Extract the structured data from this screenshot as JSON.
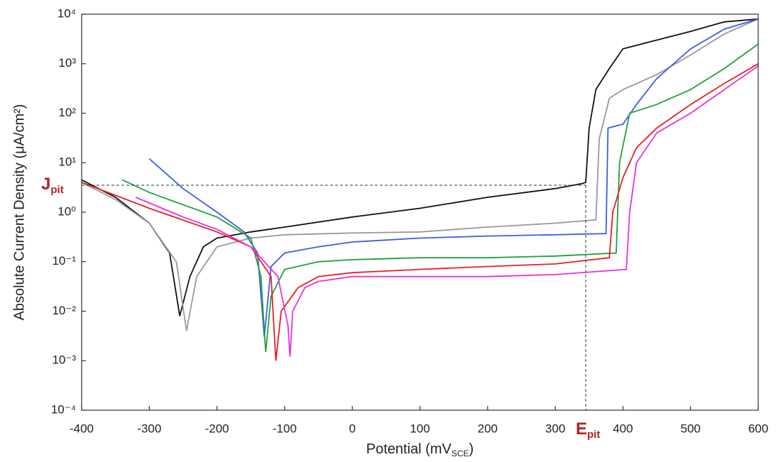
{
  "chart_data": {
    "type": "line",
    "y_label": "Absolute Current Density (μA/cm²)",
    "x_label": {
      "text": "Potential (mV",
      "sub": "SCE",
      "end": ")"
    },
    "xlim": [
      -400,
      600
    ],
    "xticks": [
      -400,
      -300,
      -200,
      -100,
      0,
      100,
      200,
      300,
      400,
      500,
      600
    ],
    "ylim": [
      0.0001,
      10000
    ],
    "yscale": "log",
    "yticks": [
      {
        "value": 0.0001,
        "label": "10⁻⁴"
      },
      {
        "value": 0.001,
        "label": "10⁻³"
      },
      {
        "value": 0.01,
        "label": "10⁻²"
      },
      {
        "value": 0.1,
        "label": "10⁻¹"
      },
      {
        "value": 1,
        "label": "10⁰"
      },
      {
        "value": 10,
        "label": "10¹"
      },
      {
        "value": 100,
        "label": "10²"
      },
      {
        "value": 1000,
        "label": "10³"
      },
      {
        "value": 10000,
        "label": "10⁴"
      }
    ],
    "pitting": {
      "potential": 345,
      "current_density": 3.5,
      "color": "#b22222",
      "j_label": {
        "text": "J",
        "sub": "pit"
      },
      "e_label": {
        "text": "E",
        "sub": "pit"
      }
    },
    "series": [
      {
        "color": "#111111",
        "x": [
          -400,
          -350,
          -300,
          -270,
          -255,
          -240,
          -220,
          -200,
          -150,
          -100,
          0,
          100,
          200,
          300,
          340,
          345,
          350,
          360,
          380,
          400,
          450,
          500,
          550,
          600
        ],
        "values": [
          4.5,
          2,
          0.6,
          0.15,
          0.008,
          0.05,
          0.2,
          0.3,
          0.4,
          0.5,
          0.8,
          1.2,
          2,
          3,
          3.8,
          4,
          50,
          300,
          800,
          2000,
          3000,
          4500,
          7000,
          8000
        ]
      },
      {
        "color": "#999999",
        "x": [
          -400,
          -350,
          -300,
          -260,
          -245,
          -230,
          -200,
          -150,
          -100,
          0,
          100,
          200,
          300,
          360,
          365,
          380,
          400,
          450,
          500,
          550,
          600
        ],
        "values": [
          4,
          1.8,
          0.6,
          0.1,
          0.004,
          0.05,
          0.2,
          0.3,
          0.35,
          0.38,
          0.4,
          0.5,
          0.6,
          0.7,
          30,
          200,
          300,
          600,
          1500,
          4000,
          8000
        ]
      },
      {
        "color": "#3a5ee8",
        "x": [
          -300,
          -250,
          -200,
          -160,
          -140,
          -130,
          -120,
          -100,
          -50,
          0,
          100,
          200,
          300,
          375,
          378,
          400,
          420,
          450,
          500,
          550,
          600
        ],
        "values": [
          12,
          3,
          1,
          0.4,
          0.15,
          0.003,
          0.08,
          0.15,
          0.2,
          0.25,
          0.3,
          0.33,
          0.35,
          0.37,
          50,
          60,
          150,
          500,
          2000,
          5000,
          8000
        ]
      },
      {
        "color": "#22a03a",
        "x": [
          -340,
          -300,
          -200,
          -150,
          -135,
          -128,
          -120,
          -100,
          -50,
          0,
          100,
          200,
          300,
          390,
          395,
          410,
          450,
          500,
          550,
          600
        ],
        "values": [
          4.5,
          2.5,
          0.8,
          0.3,
          0.05,
          0.0015,
          0.02,
          0.07,
          0.1,
          0.11,
          0.12,
          0.12,
          0.13,
          0.15,
          10,
          100,
          150,
          300,
          800,
          2500
        ]
      },
      {
        "color": "#e8201e",
        "x": [
          -400,
          -300,
          -200,
          -150,
          -120,
          -113,
          -105,
          -80,
          -50,
          0,
          100,
          200,
          300,
          380,
          385,
          400,
          420,
          450,
          500,
          550,
          600
        ],
        "values": [
          4,
          1.2,
          0.4,
          0.2,
          0.05,
          0.001,
          0.01,
          0.03,
          0.05,
          0.06,
          0.07,
          0.08,
          0.09,
          0.12,
          1,
          5,
          20,
          50,
          150,
          400,
          1000
        ]
      },
      {
        "color": "#e830e0",
        "x": [
          -320,
          -250,
          -200,
          -150,
          -110,
          -95,
          -92,
          -88,
          -70,
          -50,
          0,
          100,
          200,
          300,
          405,
          410,
          420,
          450,
          500,
          550,
          600
        ],
        "values": [
          2,
          0.8,
          0.45,
          0.2,
          0.05,
          0.005,
          0.0012,
          0.01,
          0.03,
          0.04,
          0.05,
          0.05,
          0.05,
          0.055,
          0.07,
          1,
          10,
          40,
          100,
          300,
          900
        ]
      }
    ]
  }
}
